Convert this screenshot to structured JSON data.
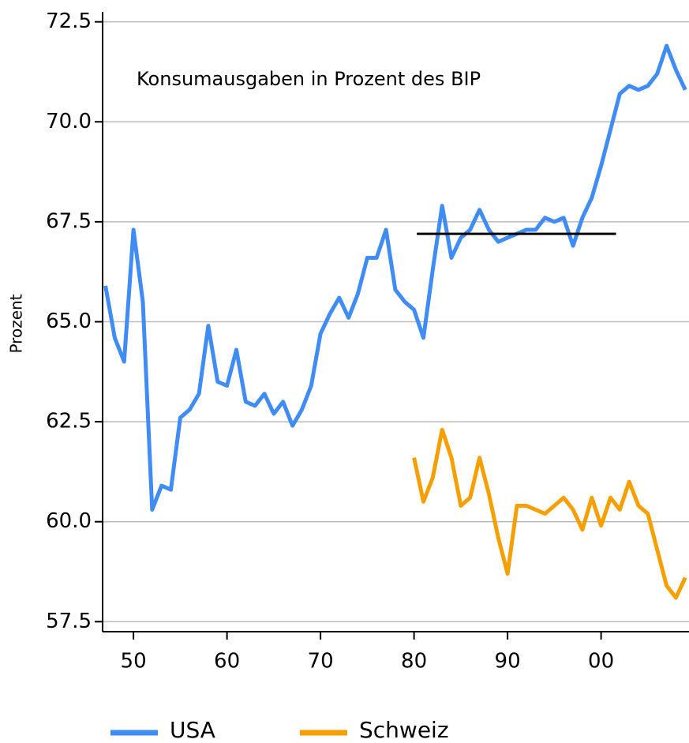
{
  "chart_data": {
    "type": "line",
    "annotation": "Konsumausgaben in Prozent des BIP",
    "y_label": "Prozent",
    "x": [
      1947,
      1948,
      1949,
      1950,
      1951,
      1952,
      1953,
      1954,
      1955,
      1956,
      1957,
      1958,
      1959,
      1960,
      1961,
      1962,
      1963,
      1964,
      1965,
      1966,
      1967,
      1968,
      1969,
      1970,
      1971,
      1972,
      1973,
      1974,
      1975,
      1976,
      1977,
      1978,
      1979,
      1980,
      1981,
      1982,
      1983,
      1984,
      1985,
      1986,
      1987,
      1988,
      1989,
      1990,
      1991,
      1992,
      1993,
      1994,
      1995,
      1996,
      1997,
      1998,
      1999,
      2000,
      2001,
      2002,
      2003,
      2004,
      2005,
      2006,
      2007,
      2008,
      2009
    ],
    "series": [
      {
        "name": "USA",
        "color": "#3f8cf5",
        "values": [
          65.9,
          64.6,
          64.0,
          67.3,
          65.5,
          60.3,
          60.9,
          60.8,
          62.6,
          62.8,
          63.2,
          64.9,
          63.5,
          63.4,
          64.3,
          63.0,
          62.9,
          63.2,
          62.7,
          63.0,
          62.4,
          62.8,
          63.4,
          64.7,
          65.2,
          65.6,
          65.1,
          65.7,
          66.6,
          66.6,
          67.3,
          65.8,
          65.5,
          65.3,
          64.6,
          66.3,
          67.9,
          66.6,
          67.1,
          67.3,
          67.8,
          67.3,
          67.0,
          67.1,
          67.2,
          67.3,
          67.3,
          67.6,
          67.5,
          67.6,
          66.9,
          67.6,
          68.1,
          68.9,
          69.8,
          70.7,
          70.9,
          70.8,
          70.9,
          71.2,
          71.9,
          71.3,
          70.8
        ]
      },
      {
        "name": "Schweiz",
        "color": "#f5a000",
        "values": [
          null,
          null,
          null,
          null,
          null,
          null,
          null,
          null,
          null,
          null,
          null,
          null,
          null,
          null,
          null,
          null,
          null,
          null,
          null,
          null,
          null,
          null,
          null,
          null,
          null,
          null,
          null,
          null,
          null,
          null,
          null,
          null,
          null,
          61.6,
          60.5,
          61.1,
          62.3,
          61.6,
          60.4,
          60.6,
          61.6,
          60.7,
          59.6,
          58.7,
          60.4,
          60.4,
          60.3,
          60.2,
          60.4,
          60.6,
          60.3,
          59.8,
          60.6,
          59.9,
          60.6,
          60.3,
          61.0,
          60.4,
          60.2,
          59.3,
          58.4,
          58.1,
          58.6
        ]
      }
    ],
    "hline": {
      "y": 67.2,
      "x": [
        1980.3,
        2001.6
      ],
      "color": "#000000"
    },
    "xlim": [
      1946.7,
      2009.4
    ],
    "xticks": [
      {
        "value": 1950,
        "label": "50"
      },
      {
        "value": 1960,
        "label": "60"
      },
      {
        "value": 1970,
        "label": "70"
      },
      {
        "value": 1980,
        "label": "80"
      },
      {
        "value": 1990,
        "label": "90"
      },
      {
        "value": 2000,
        "label": "00"
      }
    ],
    "ylim": [
      57.25,
      72.75
    ],
    "yticks": [
      57.5,
      {
        "value": 60,
        "label": "60.0"
      },
      62.5,
      {
        "value": 65,
        "label": "65.0"
      },
      67.5,
      {
        "value": 70,
        "label": "70.0"
      },
      72.5
    ],
    "grid": true
  }
}
